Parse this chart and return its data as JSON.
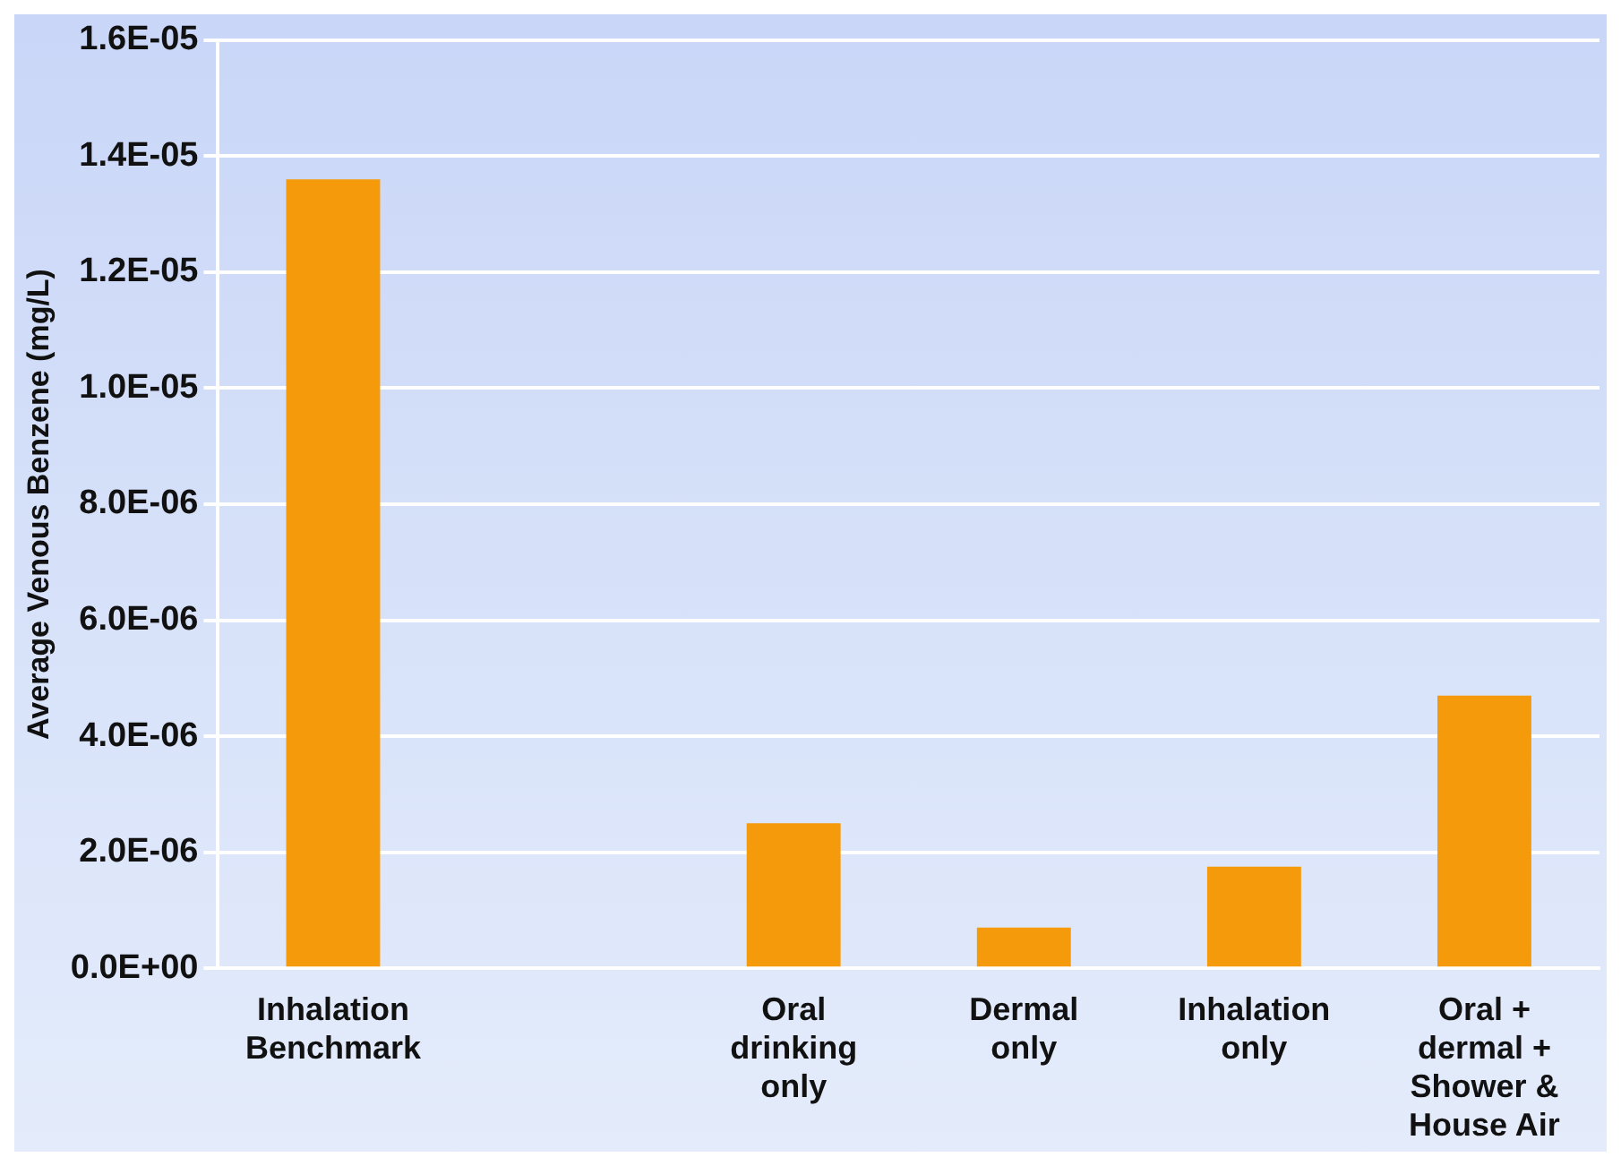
{
  "chart_data": {
    "type": "bar",
    "ylabel": "Average Venous Benzene (mg/L)",
    "categories": [
      "Inhalation Benchmark",
      null,
      "Oral drinking only",
      "Dermal only",
      "Inhalation only",
      "Oral + dermal + Shower & House Air"
    ],
    "values": [
      1.36e-05,
      null,
      2.5e-06,
      7e-07,
      1.75e-06,
      4.7e-06
    ],
    "color": "#f59a0a",
    "ylim": [
      0,
      1.6e-05
    ],
    "yticks": [
      {
        "value": 0,
        "label": "0.0E+00"
      },
      {
        "value": 2e-06,
        "label": "2.0E-06"
      },
      {
        "value": 4e-06,
        "label": "4.0E-06"
      },
      {
        "value": 6e-06,
        "label": "6.0E-06"
      },
      {
        "value": 8e-06,
        "label": "8.0E-06"
      },
      {
        "value": 1e-05,
        "label": "1.0E-05"
      },
      {
        "value": 1.2e-05,
        "label": "1.2E-05"
      },
      {
        "value": 1.4e-05,
        "label": "1.4E-05"
      },
      {
        "value": 1.6e-05,
        "label": "1.6E-05"
      }
    ],
    "grid": "y",
    "legend": false
  }
}
